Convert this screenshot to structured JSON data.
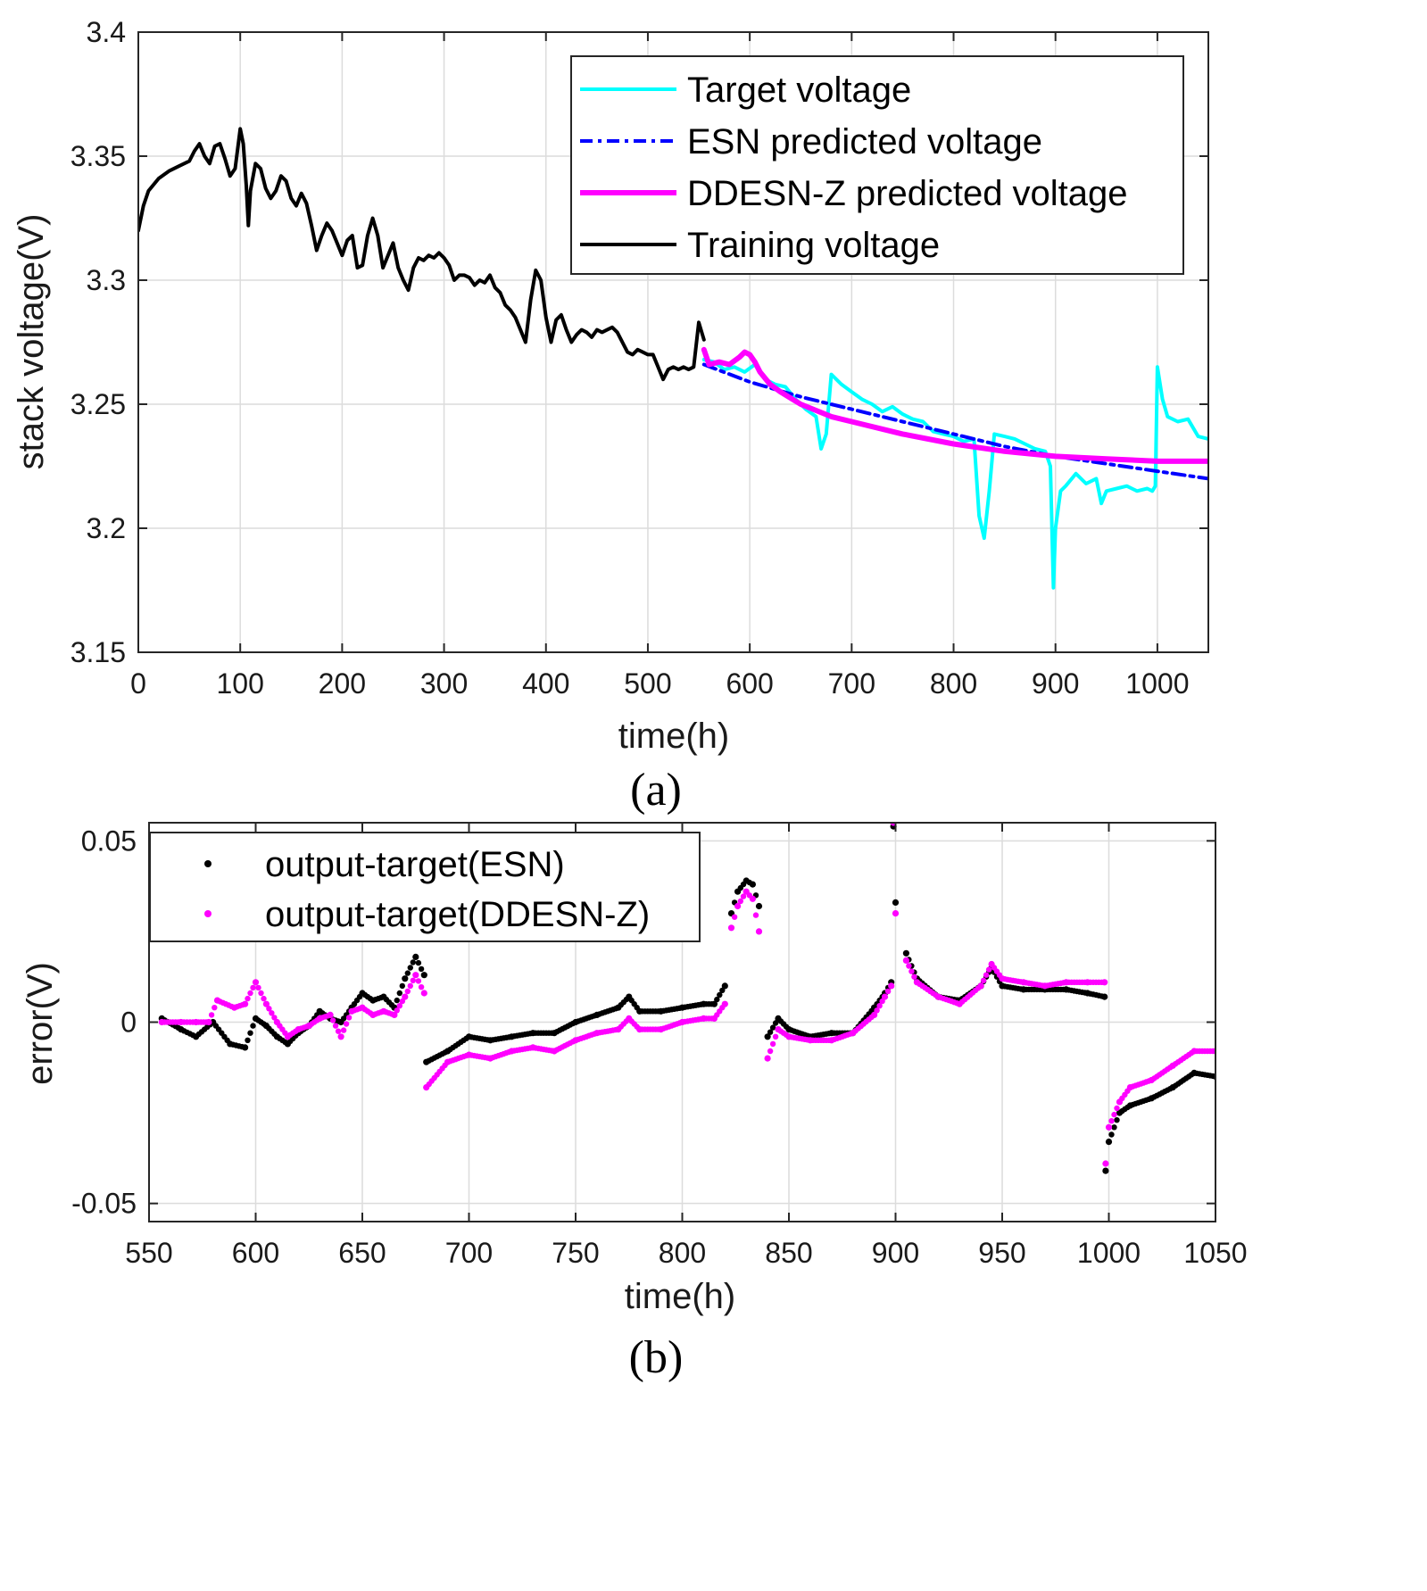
{
  "chart_data": [
    {
      "type": "line",
      "caption": "(a)",
      "xlabel": "time(h)",
      "ylabel": "stack voltage(V)",
      "xlim": [
        0,
        1050
      ],
      "ylim": [
        3.15,
        3.4
      ],
      "xticks": [
        0,
        100,
        200,
        300,
        400,
        500,
        600,
        700,
        800,
        900,
        1000
      ],
      "xtick_labels": [
        "0",
        "100",
        "200",
        "300",
        "400",
        "500",
        "600",
        "700",
        "800",
        "900",
        "1000"
      ],
      "yticks": [
        3.15,
        3.2,
        3.25,
        3.3,
        3.35,
        3.4
      ],
      "ytick_labels": [
        "3.15",
        "3.2",
        "3.25",
        "3.3",
        "3.35",
        "3.4"
      ],
      "grid": true,
      "legend_position": "top-right",
      "series": [
        {
          "name": "Target voltage",
          "color": "#00ffff",
          "style": "solid",
          "x": [
            555,
            565,
            575,
            585,
            595,
            605,
            615,
            625,
            635,
            645,
            655,
            665,
            670,
            675,
            680,
            690,
            700,
            710,
            720,
            730,
            740,
            750,
            760,
            770,
            780,
            790,
            800,
            810,
            820,
            825,
            830,
            835,
            840,
            850,
            860,
            870,
            880,
            890,
            895,
            898,
            900,
            905,
            910,
            920,
            930,
            940,
            945,
            950,
            960,
            970,
            980,
            990,
            995,
            998,
            1000,
            1005,
            1010,
            1020,
            1030,
            1040,
            1050
          ],
          "y": [
            3.268,
            3.267,
            3.264,
            3.265,
            3.263,
            3.266,
            3.26,
            3.258,
            3.257,
            3.252,
            3.248,
            3.245,
            3.232,
            3.238,
            3.262,
            3.258,
            3.255,
            3.252,
            3.25,
            3.247,
            3.249,
            3.246,
            3.244,
            3.243,
            3.239,
            3.238,
            3.237,
            3.235,
            3.236,
            3.205,
            3.196,
            3.215,
            3.238,
            3.237,
            3.236,
            3.234,
            3.232,
            3.231,
            3.225,
            3.176,
            3.2,
            3.215,
            3.217,
            3.222,
            3.218,
            3.22,
            3.21,
            3.215,
            3.216,
            3.217,
            3.215,
            3.216,
            3.215,
            3.217,
            3.265,
            3.252,
            3.245,
            3.243,
            3.244,
            3.237,
            3.236
          ]
        },
        {
          "name": "ESN predicted voltage",
          "color": "#0000ff",
          "style": "dashdot",
          "x": [
            555,
            600,
            650,
            700,
            750,
            800,
            850,
            900,
            950,
            1000,
            1050
          ],
          "y": [
            3.266,
            3.259,
            3.253,
            3.248,
            3.243,
            3.238,
            3.233,
            3.229,
            3.226,
            3.223,
            3.22
          ]
        },
        {
          "name": "DDESN-Z predicted voltage",
          "color": "#ff00ff",
          "style": "solid",
          "x": [
            555,
            560,
            570,
            580,
            590,
            595,
            600,
            605,
            610,
            620,
            630,
            650,
            680,
            700,
            750,
            800,
            850,
            900,
            950,
            1000,
            1050
          ],
          "y": [
            3.272,
            3.266,
            3.267,
            3.266,
            3.269,
            3.271,
            3.27,
            3.267,
            3.263,
            3.258,
            3.255,
            3.25,
            3.245,
            3.243,
            3.238,
            3.234,
            3.231,
            3.229,
            3.228,
            3.227,
            3.227
          ]
        },
        {
          "name": "Training voltage",
          "color": "#000000",
          "style": "solid",
          "x": [
            0,
            5,
            10,
            20,
            30,
            40,
            50,
            55,
            60,
            65,
            70,
            75,
            80,
            85,
            90,
            95,
            100,
            103,
            106,
            108,
            110,
            115,
            120,
            125,
            130,
            135,
            140,
            145,
            150,
            155,
            160,
            165,
            170,
            175,
            180,
            185,
            190,
            195,
            200,
            205,
            210,
            215,
            220,
            225,
            230,
            235,
            240,
            245,
            250,
            255,
            260,
            265,
            270,
            275,
            280,
            285,
            290,
            295,
            300,
            305,
            310,
            315,
            320,
            325,
            330,
            335,
            340,
            345,
            350,
            355,
            360,
            365,
            370,
            375,
            380,
            385,
            390,
            395,
            400,
            405,
            410,
            415,
            420,
            425,
            430,
            435,
            440,
            445,
            450,
            455,
            460,
            465,
            470,
            475,
            480,
            485,
            490,
            495,
            500,
            505,
            510,
            515,
            520,
            525,
            530,
            535,
            540,
            545,
            550,
            555
          ],
          "y": [
            3.32,
            3.33,
            3.336,
            3.341,
            3.344,
            3.346,
            3.348,
            3.352,
            3.355,
            3.35,
            3.347,
            3.354,
            3.355,
            3.349,
            3.342,
            3.345,
            3.361,
            3.355,
            3.338,
            3.322,
            3.336,
            3.347,
            3.345,
            3.337,
            3.333,
            3.336,
            3.342,
            3.34,
            3.333,
            3.33,
            3.335,
            3.331,
            3.322,
            3.312,
            3.318,
            3.323,
            3.32,
            3.315,
            3.31,
            3.316,
            3.318,
            3.305,
            3.306,
            3.318,
            3.325,
            3.318,
            3.305,
            3.31,
            3.315,
            3.305,
            3.3,
            3.296,
            3.305,
            3.309,
            3.308,
            3.31,
            3.309,
            3.311,
            3.309,
            3.306,
            3.3,
            3.302,
            3.302,
            3.301,
            3.298,
            3.3,
            3.299,
            3.302,
            3.297,
            3.295,
            3.29,
            3.288,
            3.285,
            3.28,
            3.275,
            3.292,
            3.304,
            3.3,
            3.285,
            3.275,
            3.284,
            3.286,
            3.28,
            3.275,
            3.278,
            3.28,
            3.279,
            3.277,
            3.28,
            3.279,
            3.28,
            3.281,
            3.279,
            3.275,
            3.271,
            3.27,
            3.272,
            3.271,
            3.27,
            3.27,
            3.265,
            3.26,
            3.264,
            3.265,
            3.264,
            3.265,
            3.264,
            3.265,
            3.283,
            3.276
          ]
        }
      ]
    },
    {
      "type": "scatter",
      "caption": "(b)",
      "xlabel": "time(h)",
      "ylabel": "error(V)",
      "xlim": [
        550,
        1050
      ],
      "ylim": [
        -0.055,
        0.055
      ],
      "xticks": [
        550,
        600,
        650,
        700,
        750,
        800,
        850,
        900,
        950,
        1000,
        1050
      ],
      "xtick_labels": [
        "550",
        "600",
        "650",
        "700",
        "750",
        "800",
        "850",
        "900",
        "950",
        "1000",
        "1050"
      ],
      "yticks": [
        -0.05,
        0,
        0.05
      ],
      "ytick_labels": [
        "-0.05",
        "0",
        "0.05"
      ],
      "grid": true,
      "legend_position": "top-left",
      "series": [
        {
          "name": "output-target(ESN)",
          "color": "#000000",
          "x": [
            556,
            565,
            572,
            580,
            588,
            595,
            600,
            605,
            610,
            615,
            620,
            625,
            630,
            635,
            640,
            645,
            650,
            655,
            660,
            665,
            670,
            675,
            679,
            680,
            690,
            700,
            710,
            720,
            730,
            740,
            750,
            760,
            770,
            775,
            780,
            790,
            800,
            810,
            815,
            820,
            823,
            826,
            830,
            833,
            836,
            840,
            845,
            850,
            860,
            870,
            880,
            890,
            895,
            898,
            899,
            900,
            905,
            910,
            920,
            930,
            940,
            945,
            950,
            960,
            970,
            980,
            990,
            998,
            998.5,
            1000,
            1005,
            1010,
            1020,
            1030,
            1040,
            1050
          ],
          "y": [
            0.001,
            -0.002,
            -0.004,
            0.0,
            -0.006,
            -0.007,
            0.001,
            -0.001,
            -0.004,
            -0.006,
            -0.003,
            -0.001,
            0.003,
            0.001,
            0.0,
            0.004,
            0.008,
            0.006,
            0.007,
            0.004,
            0.012,
            0.018,
            0.013,
            -0.011,
            -0.008,
            -0.004,
            -0.005,
            -0.004,
            -0.003,
            -0.003,
            0.0,
            0.002,
            0.004,
            0.007,
            0.003,
            0.003,
            0.004,
            0.005,
            0.005,
            0.01,
            0.03,
            0.036,
            0.039,
            0.038,
            0.032,
            -0.004,
            0.001,
            -0.002,
            -0.004,
            -0.003,
            -0.003,
            0.004,
            0.008,
            0.011,
            0.054,
            0.033,
            0.019,
            0.012,
            0.007,
            0.006,
            0.01,
            0.015,
            0.01,
            0.009,
            0.009,
            0.009,
            0.008,
            0.007,
            -0.041,
            -0.033,
            -0.025,
            -0.023,
            -0.021,
            -0.018,
            -0.014,
            -0.015
          ]
        },
        {
          "name": "output-target(DDESN-Z)",
          "color": "#ff00ff",
          "x": [
            556,
            565,
            572,
            578,
            582,
            590,
            595,
            600,
            605,
            610,
            615,
            620,
            625,
            630,
            635,
            640,
            645,
            650,
            655,
            660,
            665,
            670,
            675,
            679,
            680,
            690,
            700,
            710,
            720,
            730,
            740,
            750,
            760,
            770,
            775,
            780,
            790,
            800,
            810,
            815,
            820,
            823,
            826,
            830,
            833,
            836,
            840,
            845,
            850,
            860,
            870,
            880,
            890,
            895,
            898,
            899,
            900,
            905,
            910,
            920,
            930,
            940,
            945,
            950,
            960,
            970,
            980,
            990,
            998,
            998.5,
            1000,
            1005,
            1010,
            1020,
            1030,
            1040,
            1050
          ],
          "y": [
            0.0,
            0.0,
            0.0,
            0.0,
            0.006,
            0.004,
            0.005,
            0.011,
            0.005,
            0.0,
            -0.004,
            -0.002,
            -0.001,
            0.001,
            0.002,
            -0.004,
            0.003,
            0.004,
            0.002,
            0.003,
            0.002,
            0.007,
            0.013,
            0.008,
            -0.018,
            -0.011,
            -0.009,
            -0.01,
            -0.008,
            -0.007,
            -0.008,
            -0.005,
            -0.003,
            -0.002,
            0.001,
            -0.002,
            -0.002,
            0.0,
            0.001,
            0.001,
            0.005,
            0.026,
            0.032,
            0.036,
            0.034,
            0.025,
            -0.01,
            -0.002,
            -0.004,
            -0.005,
            -0.005,
            -0.003,
            0.002,
            0.007,
            0.01,
            0.055,
            0.03,
            0.017,
            0.011,
            0.007,
            0.005,
            0.01,
            0.016,
            0.012,
            0.011,
            0.01,
            0.011,
            0.011,
            0.011,
            -0.039,
            -0.029,
            -0.022,
            -0.018,
            -0.016,
            -0.012,
            -0.008,
            -0.008
          ]
        }
      ]
    }
  ]
}
